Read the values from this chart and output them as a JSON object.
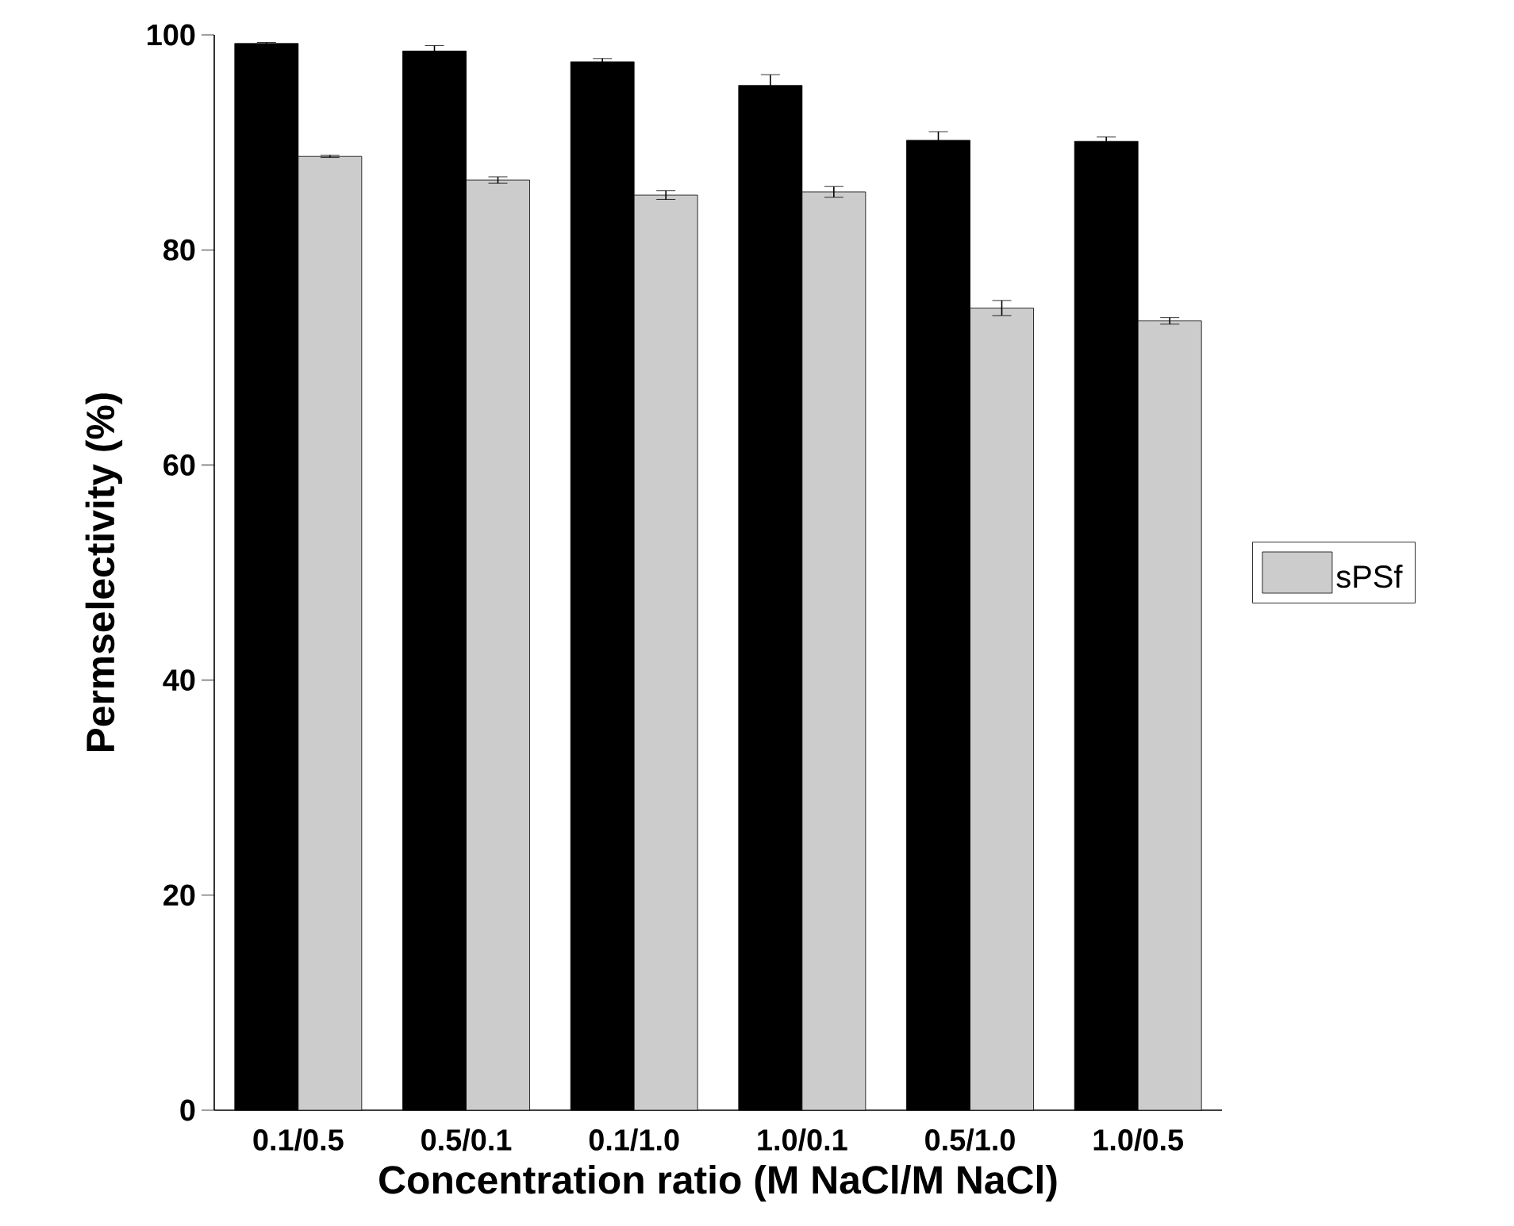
{
  "chart_data": {
    "type": "bar",
    "xlabel": "Concentration ratio (M NaCl/M NaCl)",
    "ylabel": "Permselectivity (%)",
    "categories": [
      "0.1/0.5",
      "0.5/0.1",
      "0.1/1.0",
      "1.0/0.1",
      "0.5/1.0",
      "1.0/0.5"
    ],
    "series": [
      {
        "color": "#000000",
        "values": [
          99.2,
          98.5,
          97.5,
          95.3,
          90.2,
          90.1
        ],
        "errors": [
          0.1,
          0.5,
          0.3,
          1.0,
          0.8,
          0.4
        ]
      },
      {
        "name": "sPSf",
        "color": "#cccccc",
        "values": [
          88.7,
          86.5,
          85.1,
          85.4,
          74.6,
          73.4
        ],
        "errors": [
          0.1,
          0.3,
          0.4,
          0.5,
          0.7,
          0.3
        ]
      }
    ],
    "ylim": [
      0,
      100
    ],
    "yticks": [
      0,
      20,
      40,
      60,
      80,
      100
    ],
    "legend": "right",
    "grid": false
  }
}
